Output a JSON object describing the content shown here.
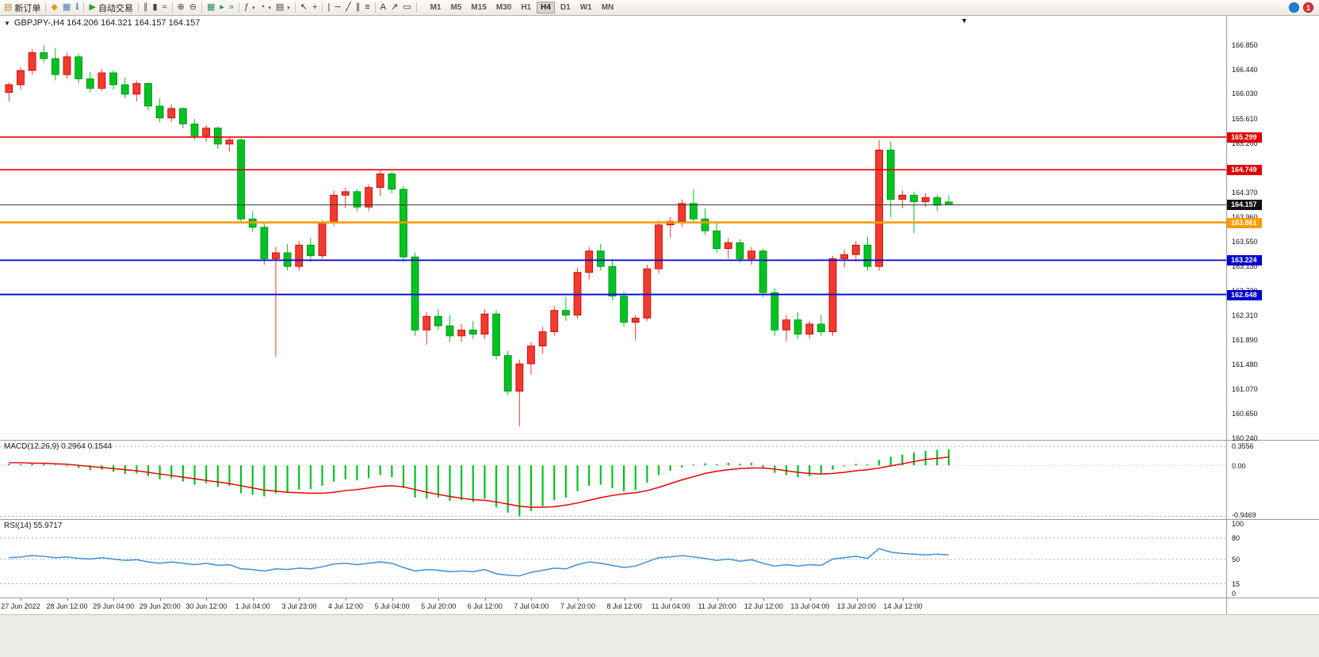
{
  "toolbar": {
    "groups": [
      [
        {
          "name": "new-order-button",
          "glyph": "▤",
          "color": "#b08830",
          "label": "新订单"
        }
      ],
      [
        {
          "name": "market-watch-button",
          "glyph": "◆",
          "color": "#d4a017"
        },
        {
          "name": "data-window-button",
          "glyph": "▦",
          "color": "#4a78b0"
        },
        {
          "name": "navigator-button",
          "glyph": "ℹ",
          "color": "#4a78b0"
        }
      ],
      [
        {
          "name": "autotrading-button",
          "glyph": "▶",
          "color": "#1faa1f",
          "label": "自动交易"
        }
      ],
      [
        {
          "name": "bar-chart-button",
          "glyph": "∥",
          "color": "#444444"
        },
        {
          "name": "candlestick-chart-button",
          "glyph": "▮",
          "color": "#444444"
        },
        {
          "name": "line-chart-button",
          "glyph": "≈",
          "color": "#444444"
        }
      ],
      [
        {
          "name": "zoom-in-button",
          "glyph": "⊕",
          "color": "#444444"
        },
        {
          "name": "zoom-out-button",
          "glyph": "⊖",
          "color": "#444444"
        }
      ],
      [
        {
          "name": "tile-windows-button",
          "glyph": "▦",
          "color": "#2e8b57"
        },
        {
          "name": "auto-scroll-button",
          "glyph": "▸",
          "color": "#2e8b57"
        },
        {
          "name": "chart-shift-button",
          "glyph": "»",
          "color": "#2e8b57"
        }
      ],
      [
        {
          "name": "indicators-button",
          "glyph": "ƒ",
          "color": "#444444",
          "dropdown": true
        },
        {
          "name": "periods-button",
          "glyph": "◔",
          "color": "#444444",
          "dropdown": true
        },
        {
          "name": "templates-button",
          "glyph": "▤",
          "color": "#444444",
          "dropdown": true
        }
      ],
      [
        {
          "name": "cursor-button",
          "glyph": "↖",
          "color": "#333333"
        },
        {
          "name": "crosshair-button",
          "glyph": "+",
          "color": "#333333"
        }
      ],
      [
        {
          "name": "vertical-line-button",
          "glyph": "|",
          "color": "#333333"
        },
        {
          "name": "horizontal-line-button",
          "glyph": "─",
          "color": "#333333"
        },
        {
          "name": "trendline-button",
          "glyph": "╱",
          "color": "#333333"
        },
        {
          "name": "channel-button",
          "glyph": "∥",
          "color": "#333333"
        },
        {
          "name": "fibonacci-button",
          "glyph": "≡",
          "color": "#333333"
        }
      ],
      [
        {
          "name": "text-button",
          "glyph": "A",
          "color": "#333333"
        },
        {
          "name": "arrows-button",
          "glyph": "↗",
          "color": "#333333"
        },
        {
          "name": "shapes-button",
          "glyph": "▭",
          "color": "#333333"
        }
      ]
    ],
    "timeframes": [
      "M1",
      "M5",
      "M15",
      "M30",
      "H1",
      "H4",
      "D1",
      "W1",
      "MN"
    ],
    "active_timeframe": "H4",
    "right": [
      {
        "name": "community-button",
        "type": "ball",
        "color": "#1f7fd4"
      },
      {
        "name": "notification-badge",
        "type": "badge",
        "color": "#e03030",
        "label": "1"
      }
    ]
  },
  "chart": {
    "title": "GBPJPY-,H4 164.206 164.321 164.157 164.157",
    "price_axis_ticks": [
      "166.850",
      "166.440",
      "166.030",
      "165.610",
      "165.200",
      "164.370",
      "163.960",
      "163.550",
      "163.130",
      "162.720",
      "162.310",
      "161.890",
      "161.480",
      "161.070",
      "160.650",
      "160.240"
    ],
    "price_markers": [
      {
        "value": "165.299",
        "color": "#e00000"
      },
      {
        "value": "164.749",
        "color": "#e00000"
      },
      {
        "value": "164.157",
        "color": "#101010"
      },
      {
        "value": "163.861",
        "color": "#ff9c00"
      },
      {
        "value": "163.224",
        "color": "#0000cc"
      },
      {
        "value": "162.648",
        "color": "#0000cc"
      }
    ],
    "time_labels": [
      "27 Jun 2022",
      "28 Jun 12:00",
      "29 Jun 04:00",
      "29 Jun 20:00",
      "30 Jun 12:00",
      "1 Jul 04:00",
      "3 Jul 23:00",
      "4 Jul 12:00",
      "5 Jul 04:00",
      "5 Jul 20:00",
      "6 Jul 12:00",
      "7 Jul 04:00",
      "7 Jul 20:00",
      "8 Jul 12:00",
      "11 Jul 04:00",
      "11 Jul 20:00",
      "12 Jul 12:00",
      "13 Jul 04:00",
      "13 Jul 20:00",
      "14 Jul 12:00"
    ]
  },
  "chart_data": [
    {
      "type": "candlestick",
      "symbol": "GBPJPY-",
      "timeframe": "H4",
      "title": "GBPJPY-,H4 164.206 164.321 164.157 164.157",
      "ylim": [
        160.2,
        167.34
      ],
      "colors": {
        "up": "#f23a2e",
        "up_border": "#c00000",
        "down": "#00c321",
        "down_border": "#008a10"
      },
      "x_label_start": 1,
      "x_label_every": 4,
      "hlines": [
        {
          "value": 165.299,
          "color": "#ee0000",
          "width": 1.6
        },
        {
          "value": 164.749,
          "color": "#ee0000",
          "width": 1.6
        },
        {
          "value": 164.157,
          "color": "#3c3c3c",
          "width": 1.1
        },
        {
          "value": 163.861,
          "color": "#ff9c00",
          "width": 2.6
        },
        {
          "value": 163.224,
          "color": "#0000e0",
          "width": 1.8
        },
        {
          "value": 162.648,
          "color": "#0000e0",
          "width": 1.8
        }
      ],
      "ohlc": [
        [
          166.05,
          166.22,
          165.9,
          166.18
        ],
        [
          166.18,
          166.48,
          166.1,
          166.42
        ],
        [
          166.42,
          166.78,
          166.35,
          166.72
        ],
        [
          166.72,
          166.85,
          166.55,
          166.62
        ],
        [
          166.62,
          166.8,
          166.25,
          166.35
        ],
        [
          166.35,
          166.72,
          166.28,
          166.65
        ],
        [
          166.65,
          166.7,
          166.2,
          166.28
        ],
        [
          166.28,
          166.4,
          166.05,
          166.12
        ],
        [
          166.12,
          166.45,
          166.08,
          166.38
        ],
        [
          166.38,
          166.42,
          166.1,
          166.18
        ],
        [
          166.18,
          166.3,
          165.95,
          166.02
        ],
        [
          166.02,
          166.25,
          165.9,
          166.2
        ],
        [
          166.2,
          166.22,
          165.75,
          165.82
        ],
        [
          165.82,
          165.95,
          165.55,
          165.62
        ],
        [
          165.62,
          165.85,
          165.55,
          165.78
        ],
        [
          165.78,
          165.8,
          165.45,
          165.52
        ],
        [
          165.52,
          165.6,
          165.25,
          165.32
        ],
        [
          165.32,
          165.5,
          165.22,
          165.45
        ],
        [
          165.45,
          165.48,
          165.1,
          165.18
        ],
        [
          165.18,
          165.3,
          165.05,
          165.25
        ],
        [
          165.25,
          165.28,
          163.85,
          163.92
        ],
        [
          163.92,
          164.05,
          163.7,
          163.78
        ],
        [
          163.78,
          163.85,
          163.15,
          163.25
        ],
        [
          163.25,
          163.45,
          161.6,
          163.35
        ],
        [
          163.35,
          163.5,
          163.05,
          163.12
        ],
        [
          163.12,
          163.55,
          163.05,
          163.48
        ],
        [
          163.48,
          163.6,
          163.2,
          163.3
        ],
        [
          163.3,
          163.9,
          163.25,
          163.85
        ],
        [
          163.85,
          164.4,
          163.8,
          164.32
        ],
        [
          164.32,
          164.45,
          164.1,
          164.38
        ],
        [
          164.38,
          164.42,
          164.05,
          164.12
        ],
        [
          164.12,
          164.5,
          164.05,
          164.45
        ],
        [
          164.45,
          164.75,
          164.3,
          164.68
        ],
        [
          164.68,
          164.72,
          164.35,
          164.42
        ],
        [
          164.42,
          164.48,
          163.2,
          163.28
        ],
        [
          163.28,
          163.35,
          161.95,
          162.05
        ],
        [
          162.05,
          162.35,
          161.8,
          162.28
        ],
        [
          162.28,
          162.4,
          162.05,
          162.12
        ],
        [
          162.12,
          162.3,
          161.85,
          161.95
        ],
        [
          161.95,
          162.15,
          161.85,
          162.05
        ],
        [
          162.05,
          162.2,
          161.9,
          161.98
        ],
        [
          161.98,
          162.4,
          161.9,
          162.32
        ],
        [
          162.32,
          162.38,
          161.55,
          161.62
        ],
        [
          161.62,
          161.7,
          160.95,
          161.02
        ],
        [
          161.02,
          161.55,
          160.43,
          161.48
        ],
        [
          161.48,
          161.85,
          161.3,
          161.78
        ],
        [
          161.78,
          162.1,
          161.65,
          162.02
        ],
        [
          162.02,
          162.45,
          161.95,
          162.38
        ],
        [
          162.38,
          162.6,
          162.2,
          162.3
        ],
        [
          162.3,
          163.1,
          162.25,
          163.02
        ],
        [
          163.02,
          163.45,
          162.9,
          163.38
        ],
        [
          163.38,
          163.5,
          163.05,
          163.12
        ],
        [
          163.12,
          163.25,
          162.55,
          162.62
        ],
        [
          162.62,
          162.7,
          162.1,
          162.18
        ],
        [
          162.18,
          162.3,
          161.87,
          162.25
        ],
        [
          162.25,
          163.15,
          162.2,
          163.08
        ],
        [
          163.08,
          163.9,
          163.0,
          163.82
        ],
        [
          163.82,
          163.95,
          163.6,
          163.88
        ],
        [
          163.88,
          164.25,
          163.78,
          164.18
        ],
        [
          164.18,
          164.42,
          163.85,
          163.92
        ],
        [
          163.92,
          164.1,
          163.65,
          163.72
        ],
        [
          163.72,
          163.85,
          163.35,
          163.42
        ],
        [
          163.42,
          163.6,
          163.25,
          163.52
        ],
        [
          163.52,
          163.58,
          163.18,
          163.25
        ],
        [
          163.25,
          163.45,
          163.15,
          163.38
        ],
        [
          163.38,
          163.42,
          162.6,
          162.68
        ],
        [
          162.68,
          162.75,
          161.95,
          162.05
        ],
        [
          162.05,
          162.3,
          161.85,
          162.22
        ],
        [
          162.22,
          162.35,
          161.9,
          161.98
        ],
        [
          161.98,
          162.2,
          161.9,
          162.15
        ],
        [
          162.15,
          162.3,
          161.95,
          162.02
        ],
        [
          162.02,
          163.3,
          161.95,
          163.25
        ],
        [
          163.25,
          163.4,
          163.1,
          163.32
        ],
        [
          163.32,
          163.55,
          163.2,
          163.48
        ],
        [
          163.48,
          163.62,
          163.05,
          163.12
        ],
        [
          163.12,
          165.25,
          163.05,
          165.08
        ],
        [
          165.08,
          165.22,
          163.95,
          164.25
        ],
        [
          164.25,
          164.4,
          164.1,
          164.32
        ],
        [
          164.32,
          164.38,
          163.68,
          164.21
        ],
        [
          164.21,
          164.35,
          164.12,
          164.28
        ],
        [
          164.28,
          164.33,
          164.05,
          164.15
        ],
        [
          164.206,
          164.321,
          164.157,
          164.157
        ]
      ]
    },
    {
      "type": "bar",
      "name": "MACD(12,26,9)",
      "label": "MACD(12,26,9) 0.2964 0.1544",
      "ylim": [
        -1.0,
        0.46
      ],
      "yticks": [
        "0.3556",
        "0.00",
        "-0.9469"
      ],
      "levels": [
        0.3556,
        -0.9469
      ],
      "colors": {
        "histogram": "#00c321",
        "signal": "#ee0000"
      },
      "values": [
        0.03,
        0.02,
        0.04,
        0.03,
        0.01,
        -0.02,
        -0.05,
        -0.09,
        -0.08,
        -0.12,
        -0.16,
        -0.15,
        -0.2,
        -0.26,
        -0.24,
        -0.3,
        -0.36,
        -0.33,
        -0.4,
        -0.38,
        -0.52,
        -0.55,
        -0.58,
        -0.52,
        -0.5,
        -0.45,
        -0.44,
        -0.38,
        -0.3,
        -0.26,
        -0.28,
        -0.24,
        -0.18,
        -0.22,
        -0.42,
        -0.6,
        -0.62,
        -0.6,
        -0.66,
        -0.65,
        -0.68,
        -0.62,
        -0.78,
        -0.88,
        -0.95,
        -0.85,
        -0.76,
        -0.65,
        -0.6,
        -0.48,
        -0.38,
        -0.36,
        -0.42,
        -0.48,
        -0.46,
        -0.32,
        -0.18,
        -0.1,
        -0.04,
        0.02,
        0.04,
        0.02,
        0.05,
        0.03,
        0.05,
        -0.04,
        -0.14,
        -0.18,
        -0.22,
        -0.2,
        -0.15,
        -0.08,
        -0.02,
        0.03,
        0.02,
        0.1,
        0.16,
        0.2,
        0.24,
        0.27,
        0.29,
        0.2964
      ],
      "signal": [
        0.05,
        0.05,
        0.04,
        0.04,
        0.03,
        0.02,
        0.0,
        -0.02,
        -0.04,
        -0.06,
        -0.08,
        -0.1,
        -0.13,
        -0.16,
        -0.19,
        -0.22,
        -0.25,
        -0.28,
        -0.31,
        -0.34,
        -0.38,
        -0.42,
        -0.46,
        -0.48,
        -0.5,
        -0.51,
        -0.52,
        -0.52,
        -0.5,
        -0.47,
        -0.45,
        -0.42,
        -0.39,
        -0.38,
        -0.4,
        -0.45,
        -0.5,
        -0.54,
        -0.58,
        -0.61,
        -0.64,
        -0.65,
        -0.68,
        -0.72,
        -0.76,
        -0.78,
        -0.78,
        -0.77,
        -0.74,
        -0.7,
        -0.65,
        -0.6,
        -0.56,
        -0.53,
        -0.51,
        -0.47,
        -0.41,
        -0.34,
        -0.27,
        -0.21,
        -0.15,
        -0.11,
        -0.08,
        -0.06,
        -0.05,
        -0.05,
        -0.07,
        -0.1,
        -0.13,
        -0.15,
        -0.16,
        -0.15,
        -0.13,
        -0.1,
        -0.08,
        -0.05,
        -0.01,
        0.03,
        0.07,
        0.11,
        0.13,
        0.1544
      ]
    },
    {
      "type": "line",
      "name": "RSI(14)",
      "label": "RSI(14) 55.9717",
      "ylim": [
        -5,
        106
      ],
      "yticks": [
        "100",
        "80",
        "50",
        "15",
        "0"
      ],
      "levels": [
        80,
        50,
        15
      ],
      "colors": {
        "line": "#3b8fdd"
      },
      "values": [
        52,
        53,
        55,
        54,
        52,
        53,
        51,
        50,
        52,
        50,
        48,
        49,
        46,
        44,
        46,
        44,
        42,
        44,
        41,
        42,
        36,
        35,
        33,
        36,
        35,
        37,
        36,
        39,
        43,
        44,
        42,
        44,
        46,
        44,
        38,
        33,
        35,
        34,
        32,
        33,
        32,
        35,
        29,
        27,
        26,
        31,
        34,
        37,
        36,
        42,
        46,
        44,
        41,
        38,
        40,
        46,
        52,
        53,
        55,
        53,
        51,
        48,
        50,
        47,
        49,
        44,
        40,
        42,
        40,
        42,
        41,
        50,
        52,
        54,
        51,
        65,
        60,
        58,
        57,
        56,
        57,
        55.9717
      ]
    }
  ]
}
